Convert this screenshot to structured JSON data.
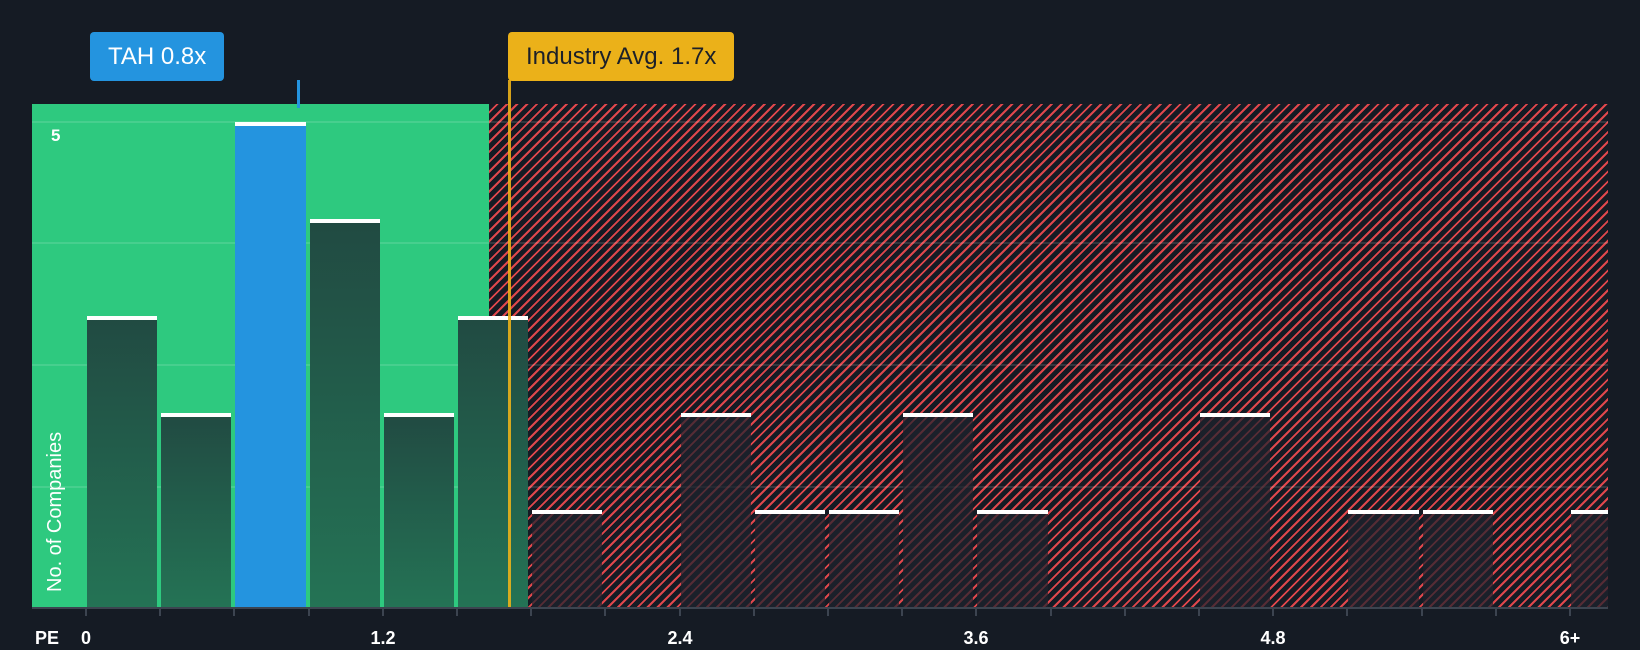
{
  "chart_data": {
    "type": "bar",
    "title": "",
    "xlabel": "PE",
    "ylabel": "No. of Companies",
    "x_tick_labels": [
      "0",
      "1.2",
      "2.4",
      "3.6",
      "4.8",
      "6+"
    ],
    "y_tick_labels": [
      "5"
    ],
    "ylim": [
      0,
      5
    ],
    "bin_width": 0.3,
    "categories": [
      "0-0.3",
      "0.3-0.6",
      "0.6-0.9",
      "0.9-1.2",
      "1.2-1.5",
      "1.5-1.8",
      "1.8-2.1",
      "2.1-2.4",
      "2.4-2.7",
      "2.7-3.0",
      "3.0-3.3",
      "3.3-3.6",
      "3.6-3.9",
      "3.9-4.2",
      "4.2-4.5",
      "4.5-4.8",
      "4.8-5.1",
      "5.1-5.4",
      "5.4-5.7",
      "5.7-6.0",
      "6+"
    ],
    "values": [
      3,
      2,
      5,
      4,
      2,
      3,
      1,
      0,
      2,
      1,
      1,
      2,
      1,
      0,
      0,
      2,
      0,
      1,
      1,
      0,
      1
    ],
    "highlight_bin": 2,
    "annotations": [
      {
        "label": "TAH 0.8x",
        "value": 0.8,
        "color": "#2494df"
      },
      {
        "label": "Industry Avg. 1.7x",
        "value": 1.7,
        "color": "#ebb119"
      }
    ],
    "zones": [
      {
        "name": "undervalued",
        "from": 0,
        "to": 1.65,
        "color": "#2ec97f"
      },
      {
        "name": "overvalued",
        "from": 1.65,
        "to": "6+",
        "color": "#e0474c",
        "pattern": "hatched"
      }
    ],
    "grid": true,
    "legend": null
  },
  "labels": {
    "tah_callout": "TAH 0.8x",
    "industry_callout": "Industry Avg. 1.7x",
    "y_axis_title": "No. of Companies",
    "y_tick_5": "5",
    "x_axis_title": "PE",
    "x_ticks": [
      "0",
      "1.2",
      "2.4",
      "3.6",
      "4.8",
      "6+"
    ]
  },
  "colors": {
    "background": "#151b24",
    "green_zone": "#2ec97f",
    "red_hatch": "#e0474c",
    "tah": "#2494df",
    "industry": "#ebb119"
  }
}
